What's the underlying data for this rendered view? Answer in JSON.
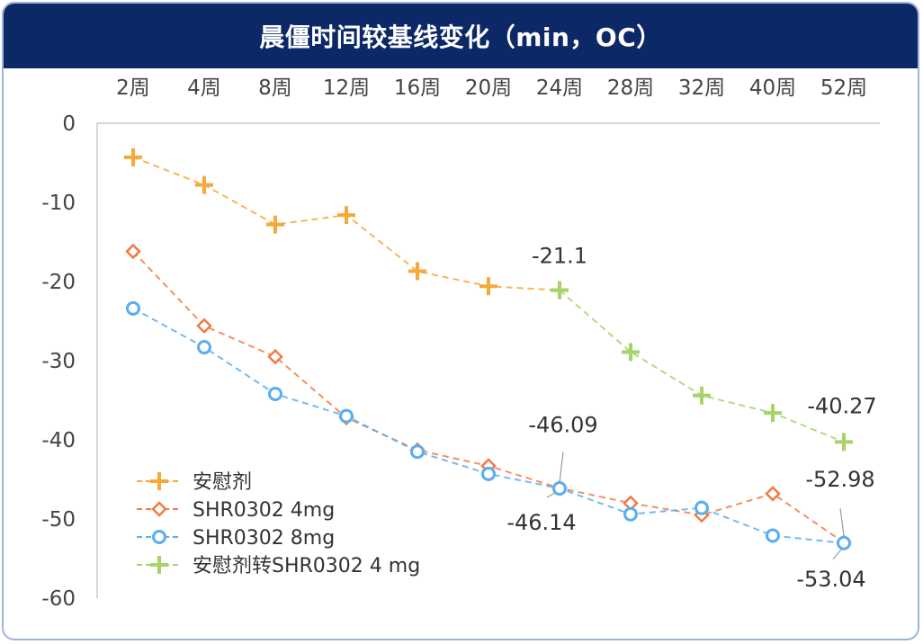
{
  "chart_data": {
    "type": "line",
    "title": "晨僵时间较基线变化（min，OC）",
    "categories": [
      "2周",
      "4周",
      "8周",
      "12周",
      "16周",
      "20周",
      "24周",
      "28周",
      "32周",
      "40周",
      "52周"
    ],
    "ylim": [
      -60,
      0
    ],
    "yticks": [
      "0",
      "-10",
      "-20",
      "-30",
      "-40",
      "-50",
      "-60"
    ],
    "xaxis_position": "top",
    "legend_position": "bottom-left",
    "series": [
      {
        "name": "安慰剂",
        "color": "#f5a93a",
        "marker": "plus",
        "values": [
          -4.3,
          -7.8,
          -12.8,
          -11.6,
          -18.7,
          -20.6,
          -21.1,
          null,
          null,
          null,
          null
        ]
      },
      {
        "name": "SHR0302 4mg",
        "color": "#f07c45",
        "marker": "diamond",
        "values": [
          -16.2,
          -25.6,
          -29.5,
          -37.2,
          -41.3,
          -43.3,
          -46.09,
          -48.0,
          -49.5,
          -46.8,
          -52.98
        ]
      },
      {
        "name": "SHR0302 8mg",
        "color": "#5aaef0",
        "marker": "circle",
        "values": [
          -23.4,
          -28.3,
          -34.2,
          -37.0,
          -41.5,
          -44.3,
          -46.14,
          -49.4,
          -48.6,
          -52.1,
          -53.04
        ]
      },
      {
        "name": "安慰剂转SHR0302 4 mg",
        "color": "#a6d46b",
        "marker": "plus",
        "values": [
          null,
          null,
          null,
          null,
          null,
          null,
          -21.1,
          -28.9,
          -34.4,
          -36.6,
          -40.27
        ]
      }
    ],
    "annotations": [
      {
        "text": "-21.1",
        "category": "24周",
        "value": -21.1
      },
      {
        "text": "-46.09",
        "category": "24周",
        "value": -46.09
      },
      {
        "text": "-46.14",
        "category": "24周",
        "value": -46.14
      },
      {
        "text": "-40.27",
        "category": "52周",
        "value": -40.27
      },
      {
        "text": "-52.98",
        "category": "52周",
        "value": -52.98
      },
      {
        "text": "-53.04",
        "category": "52周",
        "value": -53.04
      }
    ]
  }
}
